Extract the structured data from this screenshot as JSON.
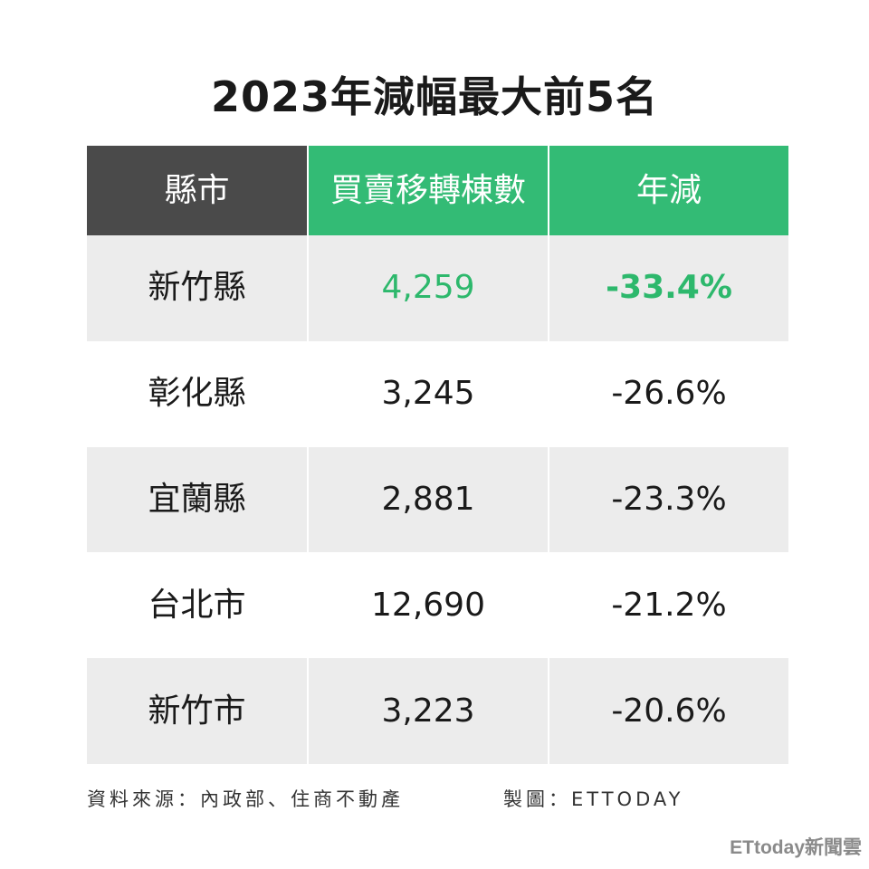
{
  "title": "2023年減幅最大前5名",
  "table": {
    "headers": [
      "縣市",
      "買賣移轉棟數",
      "年減"
    ],
    "rows": [
      {
        "county": "新竹縣",
        "transfers": "4,259",
        "change": "-33.4%"
      },
      {
        "county": "彰化縣",
        "transfers": "3,245",
        "change": "-26.6%"
      },
      {
        "county": "宜蘭縣",
        "transfers": "2,881",
        "change": "-23.3%"
      },
      {
        "county": "台北市",
        "transfers": "12,690",
        "change": "-21.2%"
      },
      {
        "county": "新竹市",
        "transfers": "3,223",
        "change": "-20.6%"
      }
    ]
  },
  "footer": {
    "source": "資料來源：內政部、住商不動產",
    "maker": "製圖：ETTODAY"
  },
  "watermark": "ETtoday新聞雲",
  "colors": {
    "header_dark": "#4a4a4a",
    "header_green": "#33bb75",
    "highlight_green": "#2db86c",
    "row_shade": "#ececec"
  }
}
